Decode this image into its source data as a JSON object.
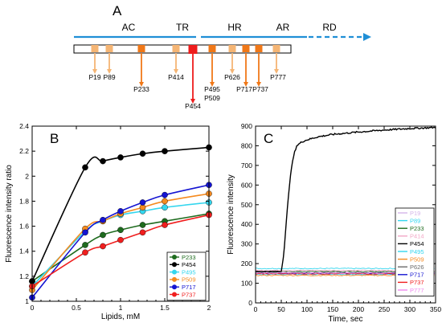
{
  "panels": {
    "a": "A",
    "b": "B",
    "c": "C"
  },
  "domain_map": {
    "segments": [
      {
        "label": "AC",
        "dashed": false
      },
      {
        "label": "TR",
        "dashed": false
      },
      {
        "label": "HR",
        "dashed": false
      },
      {
        "label": "AR",
        "dashed": false
      },
      {
        "label": "RD",
        "dashed": true
      }
    ],
    "line_color": "#1f8fd6",
    "sites": [
      {
        "label": "P19",
        "kind": "light"
      },
      {
        "label": "P89",
        "kind": "light"
      },
      {
        "label": "P233",
        "kind": "orange"
      },
      {
        "label": "P414",
        "kind": "light"
      },
      {
        "label": "P454",
        "kind": "red"
      },
      {
        "label": "P495\nP509",
        "kind": "orange"
      },
      {
        "label": "P626",
        "kind": "light"
      },
      {
        "label": "P717",
        "kind": "orange"
      },
      {
        "label": "P737",
        "kind": "orange"
      },
      {
        "label": "P777",
        "kind": "light"
      }
    ],
    "colors": {
      "light": "#f5b574",
      "orange": "#f07818",
      "red": "#ee1c1c"
    }
  },
  "chart_data": [
    {
      "type": "line",
      "panel": "B",
      "xlabel": "Lipids, mM",
      "ylabel": "Fluorescence intensity ratio",
      "xlim": [
        0,
        2
      ],
      "ylim": [
        1,
        2.4
      ],
      "xticks": [
        "0",
        "0.5",
        "1",
        "1.5",
        "2"
      ],
      "yticks": [
        "1",
        "1.2",
        "1.4",
        "1.6",
        "1.8",
        "2",
        "2.2",
        "2.4"
      ],
      "x": [
        0,
        0.6,
        0.8,
        1.0,
        1.25,
        1.5,
        2.0
      ],
      "legend_position": "bottom-right",
      "series": [
        {
          "name": "P233",
          "color": "#1e6b1e",
          "values": [
            1.16,
            1.45,
            1.53,
            1.57,
            1.61,
            1.64,
            1.7
          ]
        },
        {
          "name": "P454",
          "color": "#000000",
          "values": [
            1.16,
            2.07,
            2.12,
            2.15,
            2.18,
            2.2,
            2.23
          ]
        },
        {
          "name": "P495",
          "color": "#33d6ee",
          "values": [
            1.12,
            1.56,
            1.64,
            1.69,
            1.72,
            1.75,
            1.79
          ]
        },
        {
          "name": "P509",
          "color": "#f58a1f",
          "values": [
            1.09,
            1.58,
            1.64,
            1.7,
            1.75,
            1.8,
            1.86
          ]
        },
        {
          "name": "P717",
          "color": "#1414d2",
          "values": [
            1.03,
            1.55,
            1.65,
            1.72,
            1.79,
            1.85,
            1.93
          ]
        },
        {
          "name": "P737",
          "color": "#f01e1e",
          "values": [
            1.12,
            1.39,
            1.44,
            1.49,
            1.55,
            1.61,
            1.69
          ]
        }
      ]
    },
    {
      "type": "line",
      "panel": "C",
      "xlabel": "Time, sec",
      "ylabel": "Fluorescence intensity",
      "xlim": [
        0,
        350
      ],
      "ylim": [
        0,
        900
      ],
      "xticks": [
        "0",
        "50",
        "100",
        "150",
        "200",
        "250",
        "300",
        "350"
      ],
      "yticks": [
        "0",
        "100",
        "200",
        "300",
        "400",
        "500",
        "600",
        "700",
        "800",
        "900"
      ],
      "legend_position": "bottom-right",
      "series": [
        {
          "name": "P19",
          "color": "#d4b5ea",
          "baseline": 150
        },
        {
          "name": "P89",
          "color": "#33d6ee",
          "baseline": 175
        },
        {
          "name": "P233",
          "color": "#1e6b1e",
          "baseline": 160
        },
        {
          "name": "P414",
          "color": "#f2a7c6",
          "baseline": 165
        },
        {
          "name": "P454",
          "color": "#000000",
          "baseline": 160,
          "trace": {
            "x": [
              0,
              50,
              55,
              60,
              65,
              70,
              75,
              80,
              90,
              100,
              120,
              150,
              200,
              250,
              300,
              350
            ],
            "y": [
              160,
              160,
              250,
              420,
              580,
              690,
              760,
              800,
              820,
              830,
              845,
              858,
              870,
              880,
              888,
              893
            ]
          }
        },
        {
          "name": "P495",
          "color": "#33d6ee",
          "baseline": 145
        },
        {
          "name": "P509",
          "color": "#f58a1f",
          "baseline": 140
        },
        {
          "name": "P626",
          "color": "#6b6b6b",
          "baseline": 155
        },
        {
          "name": "P717",
          "color": "#1414d2",
          "baseline": 150
        },
        {
          "name": "P737",
          "color": "#f01e1e",
          "baseline": 148
        },
        {
          "name": "P777",
          "color": "#ee88ee",
          "baseline": 152
        }
      ]
    }
  ]
}
